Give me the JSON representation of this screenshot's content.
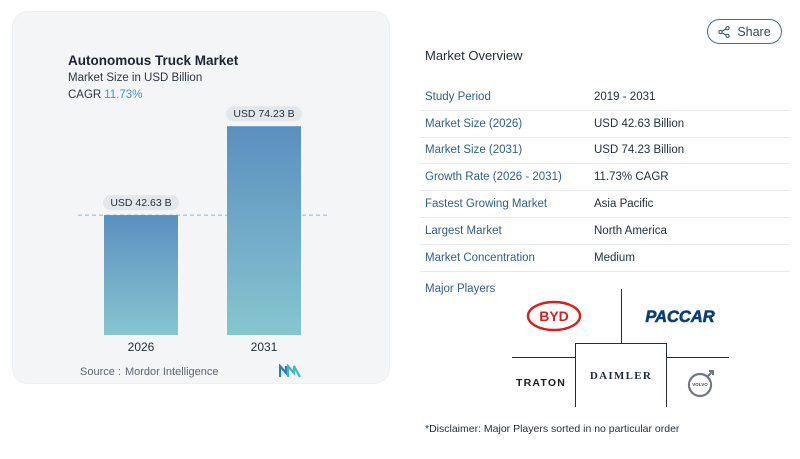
{
  "chart_data": {
    "type": "bar",
    "title": "Autonomous Truck Market",
    "subtitle": "Market Size in USD Billion",
    "cagr_label": "CAGR",
    "cagr_value": "11.73%",
    "categories": [
      "2026",
      "2031"
    ],
    "values": [
      42.63,
      74.23
    ],
    "data_labels": [
      "USD 42.63 B",
      "USD 74.23 B"
    ],
    "xlabel": "",
    "ylabel": "",
    "ylim": [
      0,
      80
    ],
    "grid": false,
    "reference_line": "dashed line at first bar value"
  },
  "source": {
    "label": "Source :",
    "name": "Mordor Intelligence"
  },
  "share_button": {
    "label": "Share"
  },
  "overview": {
    "title": "Market Overview",
    "rows": [
      {
        "key": "Study Period",
        "value": "2019 - 2031"
      },
      {
        "key": "Market Size (2026)",
        "value": "USD 42.63 Billion"
      },
      {
        "key": "Market Size (2031)",
        "value": "USD 74.23 Billion"
      },
      {
        "key": "Growth Rate (2026 - 2031)",
        "value": "11.73% CAGR"
      },
      {
        "key": "Fastest Growing Market",
        "value": "Asia Pacific"
      },
      {
        "key": "Largest Market",
        "value": "North America"
      },
      {
        "key": "Market Concentration",
        "value": "Medium"
      }
    ]
  },
  "players": {
    "title": "Major Players",
    "logos": {
      "byd": "BYD",
      "paccar": "PACCAR",
      "traton": "TRATON",
      "daimler": "DAIMLER",
      "volvo": "VOLVO"
    }
  },
  "disclaimer": "*Disclaimer: Major Players sorted in no particular order",
  "colors": {
    "bar_top": "#5b8fbf",
    "bar_bottom": "#86c6cf",
    "accent": "#2f5f8f",
    "cagr": "#4a90c8"
  }
}
